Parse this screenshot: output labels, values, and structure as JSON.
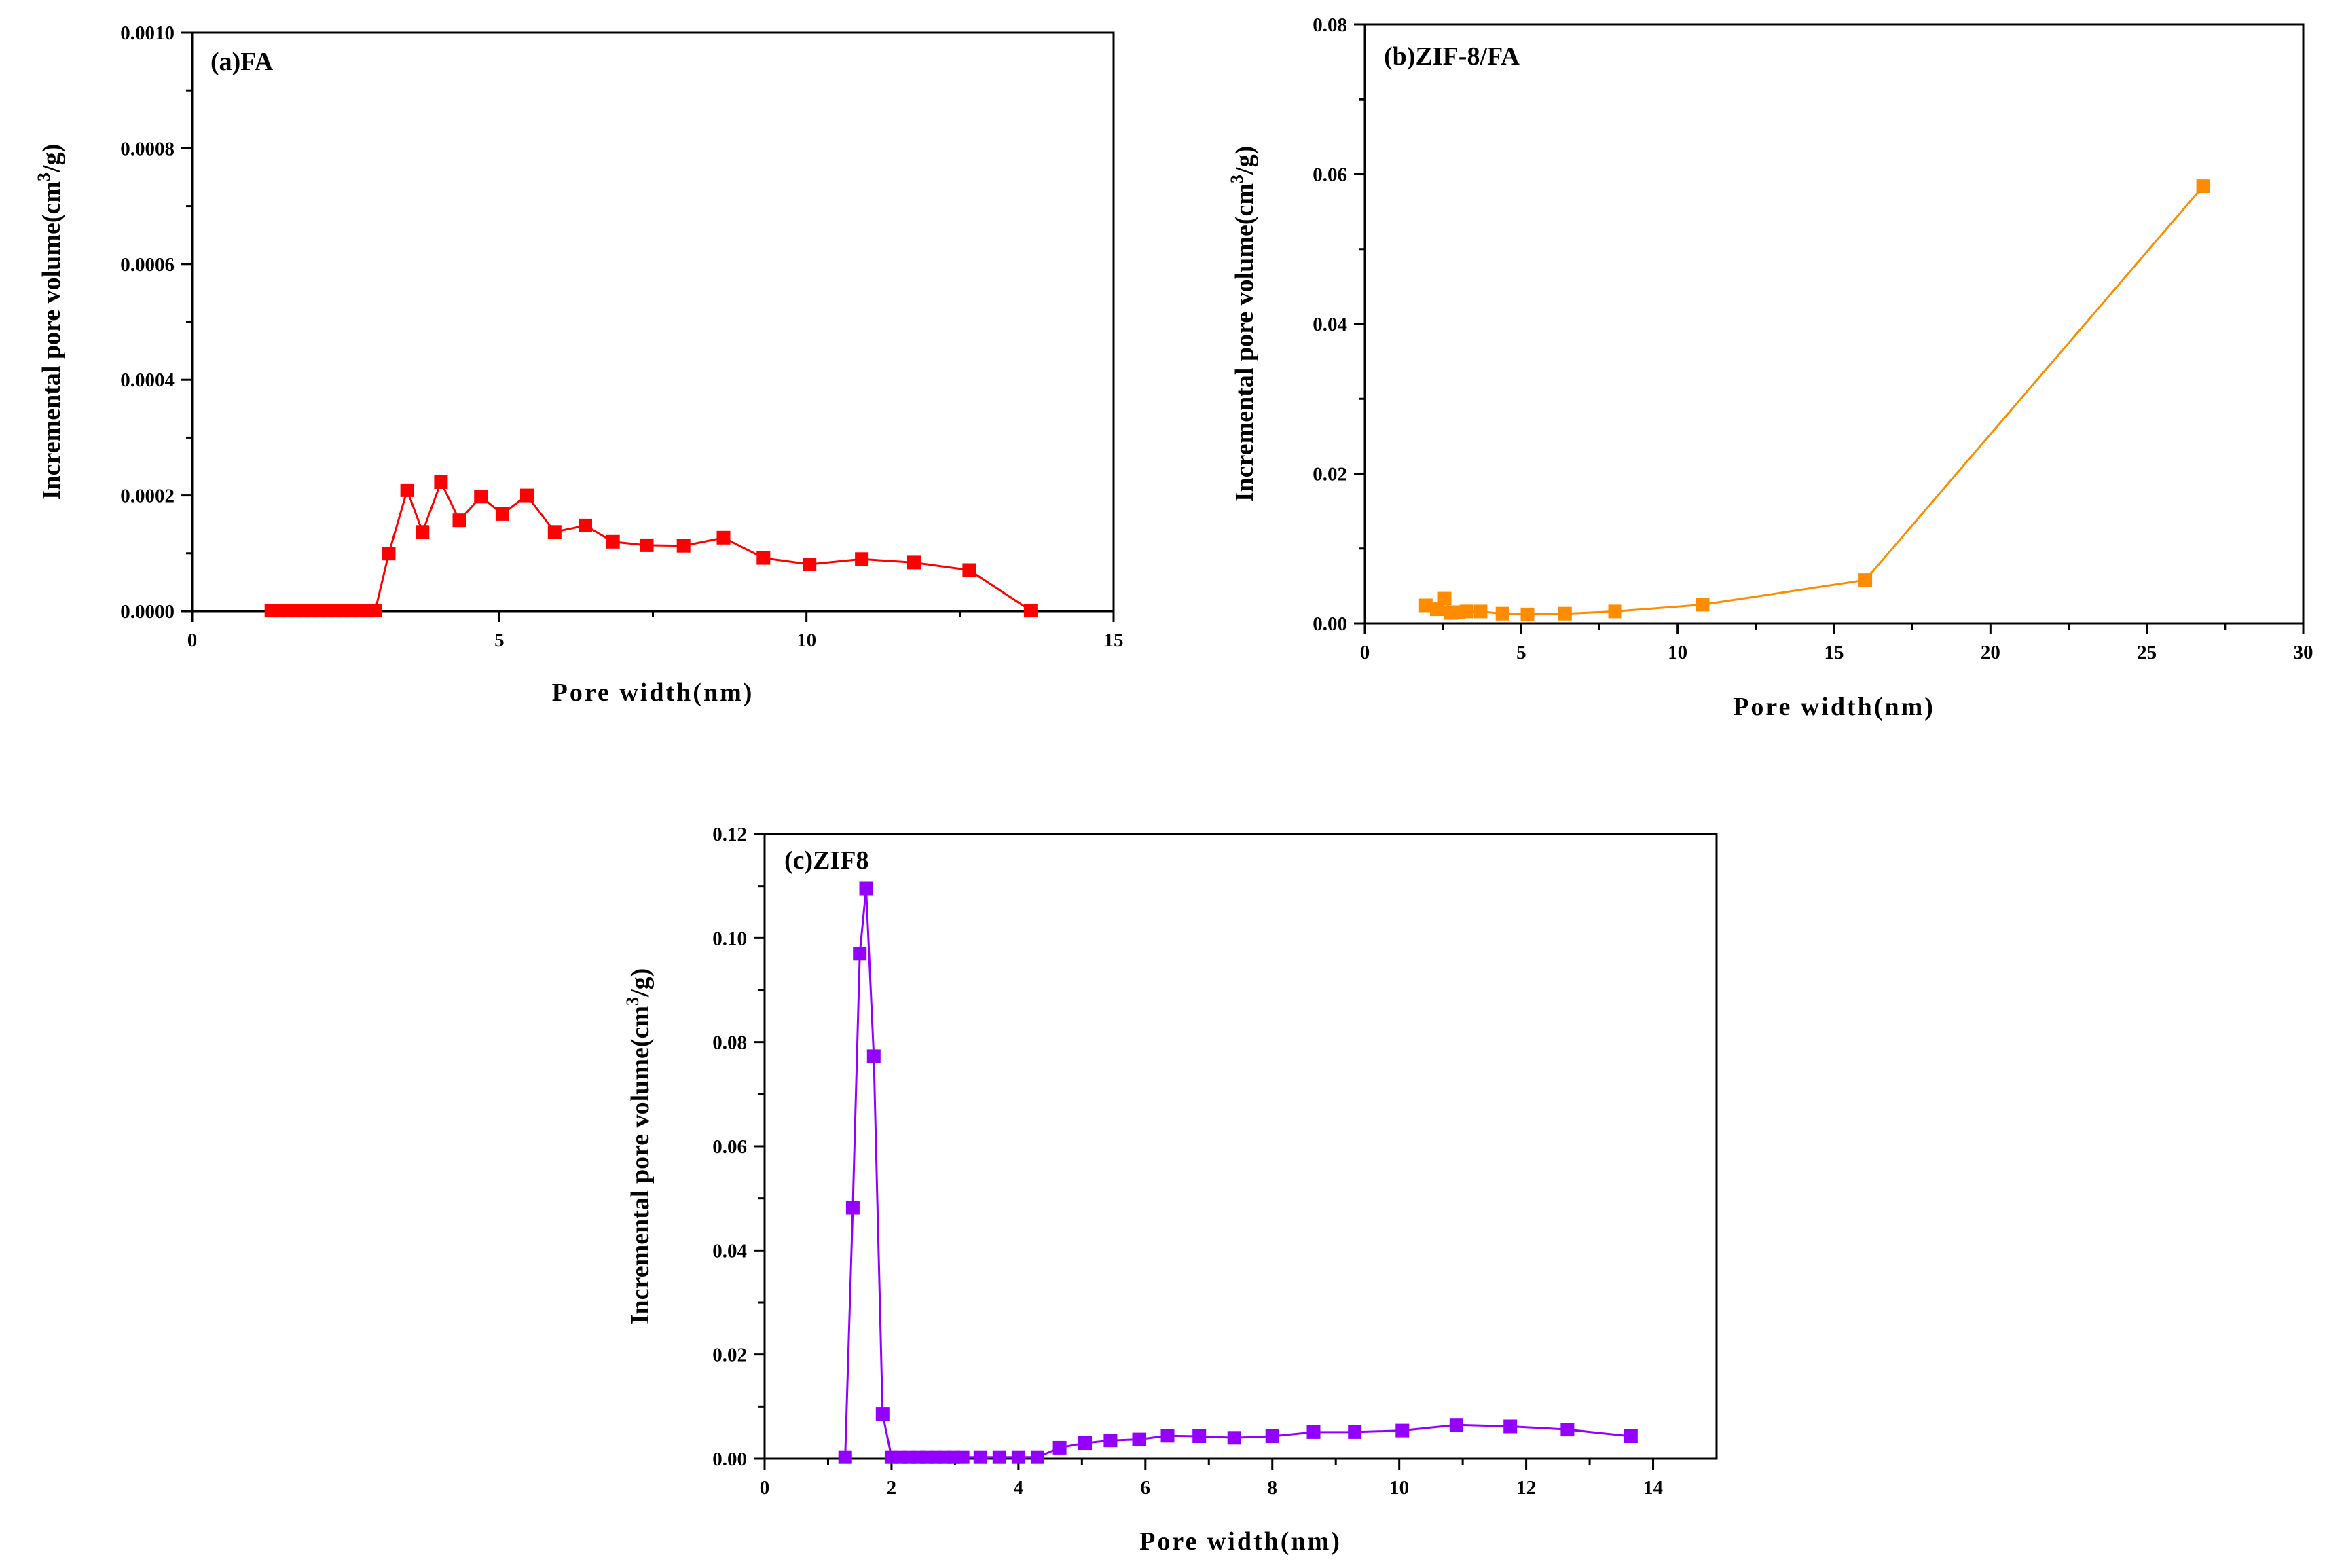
{
  "chart_data": [
    {
      "type": "line",
      "title": "(a)FA",
      "xlabel": "Pore width(nm)",
      "ylabel": "Incremental pore volume(cm3/g)",
      "ylabel_prefix": "Incremental pore volume(cm",
      "ylabel_sup": "3",
      "ylabel_suffix": "/g)",
      "xlim": [
        0,
        15
      ],
      "ylim": [
        0,
        0.001
      ],
      "xticks": [
        0,
        5,
        10,
        15
      ],
      "xtick_labels": [
        "0",
        "5",
        "10",
        "15"
      ],
      "yticks": [
        0,
        0.0002,
        0.0004,
        0.0006,
        0.0008,
        0.001
      ],
      "ytick_labels": [
        "0.0000",
        "0.0002",
        "0.0004",
        "0.0006",
        "0.0008",
        "0.0010"
      ],
      "color": "#ff0000",
      "series": [
        {
          "name": "FA",
          "x": [
            1.29,
            1.42,
            1.55,
            1.68,
            1.81,
            1.94,
            2.07,
            2.2,
            2.33,
            2.46,
            2.59,
            2.72,
            2.85,
            2.98,
            3.2,
            3.5,
            3.75,
            4.05,
            4.35,
            4.7,
            5.05,
            5.45,
            5.9,
            6.4,
            6.85,
            7.4,
            8.0,
            8.65,
            9.3,
            10.05,
            10.9,
            11.75,
            12.65,
            13.65
          ],
          "y": [
            1e-06,
            1e-06,
            1e-06,
            1e-06,
            1e-06,
            1e-06,
            1e-06,
            1e-06,
            1e-06,
            1e-06,
            1e-06,
            1e-06,
            1e-06,
            1e-06,
            9.95e-05,
            0.000209,
            0.000137,
            0.000223,
            0.000157,
            0.000198,
            0.000168,
            0.0002,
            0.000137,
            0.000148,
            0.00012,
            0.000114,
            0.000113,
            0.000127,
            9.2e-05,
            8.1e-05,
            9e-05,
            8.4e-05,
            7.1e-05,
            1e-06
          ]
        }
      ]
    },
    {
      "type": "line",
      "title": "(b)ZIF-8/FA",
      "xlabel": "Pore width(nm)",
      "ylabel": "Incremental pore volume(cm3/g)",
      "ylabel_prefix": "Incremental pore volume(cm",
      "ylabel_sup": "3",
      "ylabel_suffix": "/g)",
      "xlim": [
        0,
        30
      ],
      "ylim": [
        0,
        0.08
      ],
      "xticks": [
        0,
        5,
        10,
        15,
        20,
        25,
        30
      ],
      "xtick_labels": [
        "0",
        "5",
        "10",
        "15",
        "20",
        "25",
        "30"
      ],
      "yticks": [
        0,
        0.02,
        0.04,
        0.06,
        0.08
      ],
      "ytick_labels": [
        "0.00",
        "0.02",
        "0.04",
        "0.06",
        "0.08"
      ],
      "color": "#ff8c00",
      "series": [
        {
          "name": "ZIF-8/FA",
          "x": [
            1.95,
            2.3,
            2.55,
            2.75,
            3.0,
            3.25,
            3.7,
            4.4,
            5.2,
            6.4,
            8.0,
            10.8,
            16.0,
            26.8
          ],
          "y": [
            0.0024,
            0.0019,
            0.0033,
            0.0014,
            0.0015,
            0.0016,
            0.0016,
            0.0013,
            0.0012,
            0.0013,
            0.0016,
            0.0025,
            0.0058,
            0.0584
          ]
        }
      ]
    },
    {
      "type": "line",
      "title": "(c)ZIF8",
      "xlabel": "Pore width(nm)",
      "ylabel": "Incremental pore volume(cm3/g)",
      "ylabel_prefix": "Incremental pore volume(cm",
      "ylabel_sup": "3",
      "ylabel_suffix": "/g)",
      "xlim": [
        0,
        15
      ],
      "ylim": [
        0,
        0.12
      ],
      "xticks": [
        0,
        2,
        4,
        6,
        8,
        10,
        12,
        14
      ],
      "xtick_labels": [
        "0",
        "2",
        "4",
        "6",
        "8",
        "10",
        "12",
        "14"
      ],
      "yticks": [
        0,
        0.02,
        0.04,
        0.06,
        0.08,
        0.1,
        0.12
      ],
      "ytick_labels": [
        "0.00",
        "0.02",
        "0.04",
        "0.06",
        "0.08",
        "0.10",
        "0.12"
      ],
      "color": "#9400ff",
      "series": [
        {
          "name": "ZIF8",
          "x": [
            1.27,
            1.39,
            1.5,
            1.6,
            1.72,
            1.86,
            2.0,
            2.14,
            2.28,
            2.42,
            2.56,
            2.7,
            2.84,
            2.98,
            3.12,
            3.4,
            3.7,
            4.0,
            4.3,
            4.65,
            5.05,
            5.45,
            5.9,
            6.35,
            6.85,
            7.4,
            8.0,
            8.65,
            9.3,
            10.05,
            10.9,
            11.75,
            12.65,
            13.65
          ],
          "y": [
            0.0003,
            0.0482,
            0.097,
            0.1095,
            0.0773,
            0.0086,
            0.0003,
            0.0003,
            0.0003,
            0.0003,
            0.0003,
            0.0003,
            0.0003,
            0.0003,
            0.0003,
            0.0003,
            0.0003,
            0.0003,
            0.0003,
            0.0021,
            0.003,
            0.0035,
            0.0037,
            0.0044,
            0.0043,
            0.004,
            0.0043,
            0.0051,
            0.0051,
            0.0054,
            0.0065,
            0.0062,
            0.0056,
            0.0043
          ]
        }
      ]
    }
  ]
}
